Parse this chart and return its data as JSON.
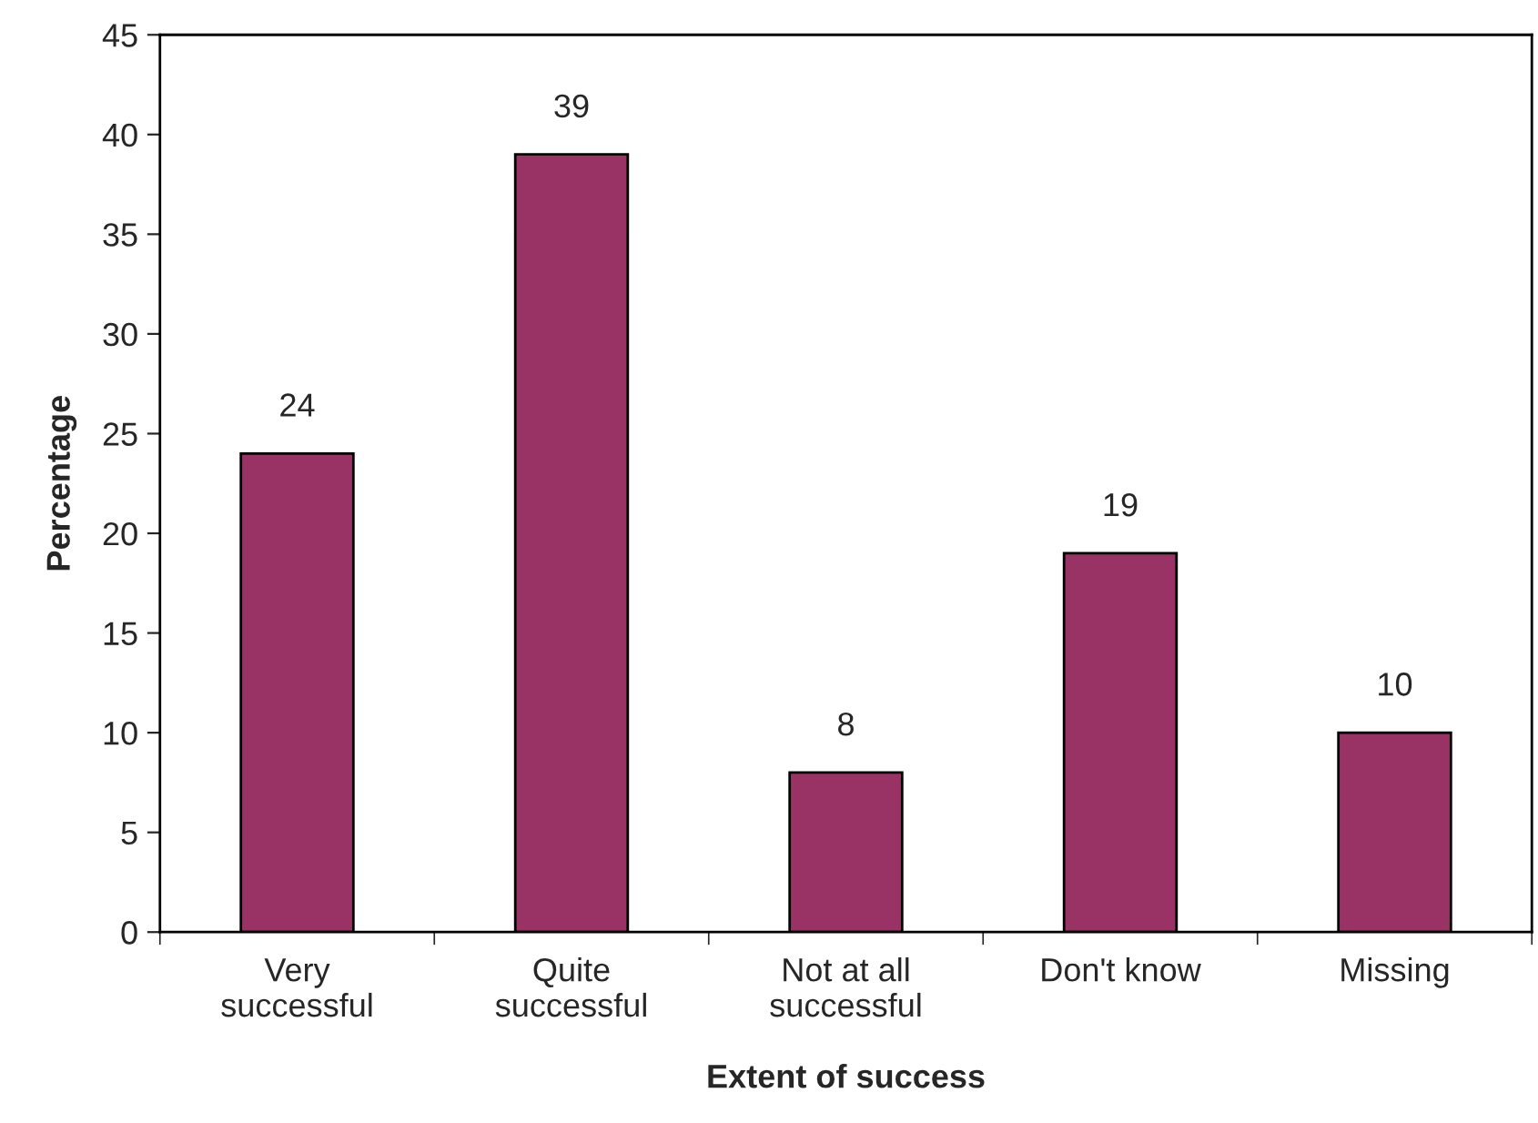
{
  "chart_data": {
    "type": "bar",
    "xlabel": "Extent of success",
    "ylabel": "Percentage",
    "categories": [
      "Very\nsuccessful",
      "Quite\nsuccessful",
      "Not at all\nsuccessful",
      "Don't know",
      "Missing"
    ],
    "values": [
      24,
      39,
      8,
      19,
      10
    ],
    "color": "#993366",
    "ylim": [
      0,
      45
    ],
    "yticks": [
      0,
      5,
      10,
      15,
      20,
      25,
      30,
      35,
      40,
      45
    ],
    "grid": false,
    "legend": false,
    "data_labels": true
  }
}
